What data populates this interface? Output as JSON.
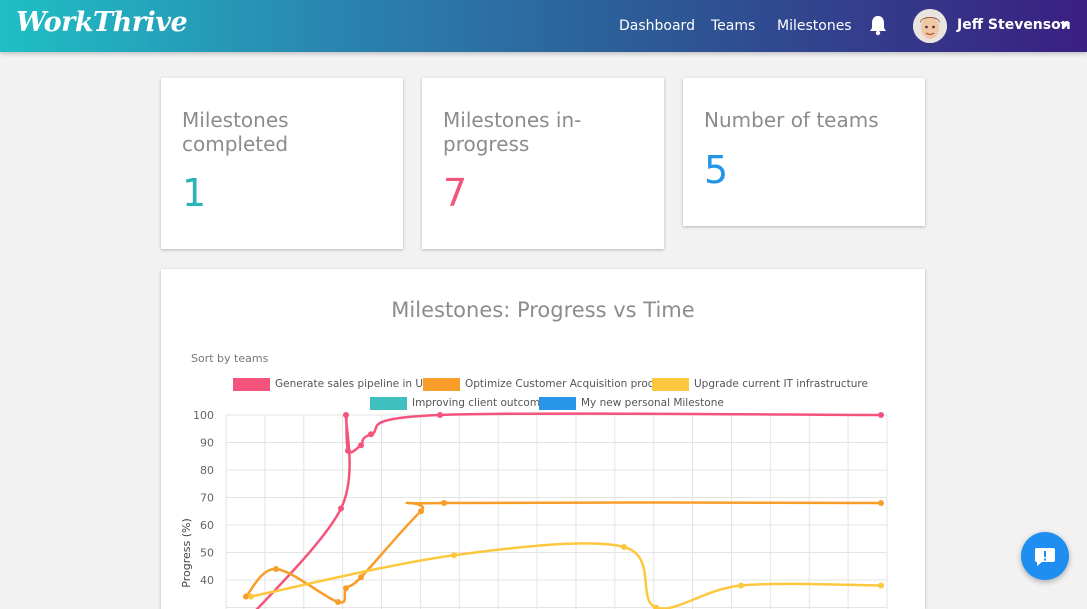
{
  "header": {
    "logo": "WorkThrive",
    "nav": [
      "Dashboard",
      "Teams",
      "Milestones"
    ],
    "user_name": "Jeff Stevenson"
  },
  "stats": [
    {
      "title": "Milestones completed",
      "value": "1",
      "color": "#2bb3b8"
    },
    {
      "title": "Milestones in-progress",
      "value": "7",
      "color": "#f0557a"
    },
    {
      "title": "Number of teams",
      "value": "5",
      "color": "#2196e8"
    }
  ],
  "chart_panel": {
    "title": "Milestones: Progress vs Time",
    "sort_label": "Sort by teams"
  },
  "chart_data": {
    "type": "line",
    "title": "Milestones: Progress vs Time",
    "ylabel": "Progress (%)",
    "ylim": [
      30,
      100
    ],
    "y_ticks": [
      "100",
      "90",
      "80",
      "70",
      "60",
      "50",
      "40"
    ],
    "series": [
      {
        "name": "Generate sales pipeline in USA",
        "color": "#f4547c",
        "points": [
          [
            20,
            25
          ],
          [
            115,
            66
          ],
          [
            120,
            100
          ],
          [
            122,
            87
          ],
          [
            135,
            89
          ],
          [
            145,
            93
          ],
          [
            214,
            100
          ],
          [
            655,
            100
          ]
        ]
      },
      {
        "name": "Optimize Customer Acquisition process",
        "color": "#f99d2a",
        "points": [
          [
            20,
            34
          ],
          [
            50,
            44
          ],
          [
            112,
            32
          ],
          [
            120,
            37
          ],
          [
            135,
            41
          ],
          [
            195,
            65
          ],
          [
            218,
            68
          ],
          [
            655,
            68
          ]
        ]
      },
      {
        "name": "Upgrade current IT infrastructure",
        "color": "#fdc83e",
        "points": [
          [
            25,
            34
          ],
          [
            228,
            49
          ],
          [
            398,
            52
          ],
          [
            430,
            30
          ],
          [
            515,
            38
          ],
          [
            655,
            38
          ]
        ]
      },
      {
        "name": "Improving client outcomes",
        "color": "#3fbfbd",
        "points": []
      },
      {
        "name": "My new personal Milestone",
        "color": "#2896e8",
        "points": []
      }
    ]
  }
}
